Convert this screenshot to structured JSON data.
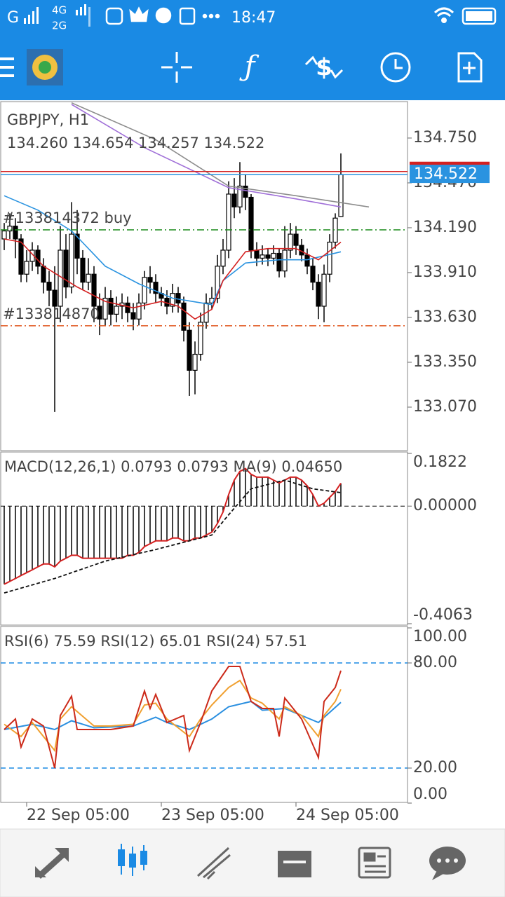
{
  "status_bar": {
    "carrier": "G",
    "network_top": "4G",
    "network_bottom": "2G",
    "time": "18:47"
  },
  "chart_data": [
    {
      "type": "candlestick",
      "title": "GBPJPY, H1",
      "subtitle": "134.260 134.654 134.257 134.522",
      "open": [
        134.12,
        134.17,
        134.2,
        134.12,
        133.9,
        133.98,
        134.05,
        133.95,
        133.85,
        133.8,
        133.7,
        134.05,
        133.82,
        134.15,
        134.0,
        133.85,
        133.9,
        133.7,
        133.62,
        133.75,
        133.65,
        133.7,
        133.72,
        133.66,
        133.62,
        133.72,
        133.88,
        133.85,
        133.78,
        133.75,
        133.7,
        133.78,
        133.72,
        133.55,
        133.3,
        133.4,
        133.6,
        133.72,
        133.75,
        133.95,
        134.05,
        134.4,
        134.32,
        134.45,
        134.38,
        134.05,
        134.0,
        134.02,
        134.0,
        134.03,
        133.92,
        134.05,
        134.15,
        134.08,
        134.02,
        133.95,
        133.85,
        133.7,
        133.9,
        134.1,
        134.26
      ],
      "high": [
        134.22,
        134.28,
        134.25,
        134.15,
        134.05,
        134.1,
        134.08,
        134.0,
        133.92,
        133.95,
        134.2,
        134.15,
        134.35,
        134.3,
        134.05,
        134.0,
        133.95,
        133.78,
        133.82,
        133.8,
        133.76,
        133.78,
        133.76,
        133.72,
        133.78,
        133.92,
        133.95,
        133.9,
        133.82,
        133.8,
        133.84,
        133.82,
        133.76,
        133.6,
        133.48,
        133.66,
        133.78,
        133.82,
        134.02,
        134.12,
        134.48,
        134.5,
        134.6,
        134.52,
        134.4,
        134.1,
        134.08,
        134.06,
        134.08,
        134.06,
        134.2,
        134.22,
        134.2,
        134.12,
        134.06,
        134.0,
        133.9,
        133.96,
        134.15,
        134.28,
        134.654
      ],
      "low": [
        134.05,
        134.12,
        134.0,
        133.85,
        133.85,
        133.92,
        133.9,
        133.78,
        133.7,
        133.04,
        133.6,
        133.75,
        133.78,
        133.9,
        133.8,
        133.8,
        133.6,
        133.52,
        133.58,
        133.58,
        133.6,
        133.62,
        133.6,
        133.55,
        133.58,
        133.68,
        133.78,
        133.72,
        133.7,
        133.65,
        133.66,
        133.66,
        133.48,
        133.14,
        133.15,
        133.36,
        133.56,
        133.68,
        133.72,
        133.9,
        134.0,
        134.25,
        134.28,
        134.3,
        134.0,
        133.95,
        133.96,
        133.95,
        133.96,
        133.88,
        133.88,
        134.0,
        134.02,
        133.98,
        133.9,
        133.8,
        133.62,
        133.6,
        133.85,
        134.06,
        134.257
      ],
      "close": [
        134.17,
        134.2,
        134.12,
        133.9,
        133.98,
        134.05,
        133.95,
        133.85,
        133.8,
        133.7,
        134.05,
        133.82,
        134.15,
        134.0,
        133.85,
        133.9,
        133.7,
        133.62,
        133.75,
        133.65,
        133.7,
        133.72,
        133.66,
        133.62,
        133.72,
        133.88,
        133.85,
        133.78,
        133.75,
        133.7,
        133.78,
        133.72,
        133.55,
        133.3,
        133.4,
        133.6,
        133.72,
        133.75,
        133.95,
        134.05,
        134.4,
        134.32,
        134.45,
        134.38,
        134.05,
        134.0,
        134.02,
        134.0,
        134.03,
        133.92,
        134.05,
        134.15,
        134.08,
        134.02,
        133.95,
        133.85,
        133.7,
        133.9,
        134.1,
        134.25,
        134.522
      ],
      "lines": [
        {
          "color": "#8c8c8c",
          "x": [
            12,
            27,
            40,
            52,
            65
          ],
          "values": [
            134.97,
            134.74,
            134.45,
            134.39,
            134.32
          ]
        },
        {
          "color": "#a070d8",
          "x": [
            12,
            25,
            40,
            52,
            60
          ],
          "values": [
            134.96,
            134.69,
            134.44,
            134.37,
            134.32
          ]
        },
        {
          "color": "#2a93e0",
          "x": [
            0,
            6,
            12,
            18,
            24,
            30,
            37,
            39,
            43,
            49,
            54,
            60
          ],
          "values": [
            134.39,
            134.3,
            134.17,
            133.95,
            133.84,
            133.75,
            133.71,
            133.86,
            133.97,
            133.99,
            133.99,
            134.04
          ]
        },
        {
          "color": "#d42020",
          "x": [
            0,
            3,
            7,
            13,
            18,
            23,
            28,
            31,
            34,
            37,
            39,
            43,
            47,
            52,
            56,
            60
          ],
          "values": [
            134.12,
            134.1,
            133.95,
            133.82,
            133.73,
            133.69,
            133.73,
            133.7,
            133.62,
            133.68,
            133.86,
            134.04,
            134.06,
            134.06,
            133.99,
            134.1
          ]
        }
      ],
      "levels": [
        {
          "kind": "ask",
          "value": 134.541,
          "color": "#d42020"
        },
        {
          "kind": "bid",
          "value": 134.522,
          "label": "134.522",
          "color": "#2a93e0"
        },
        {
          "kind": "order",
          "value": 134.177,
          "label": "#133814372 buy",
          "color": "#1a8a1a"
        },
        {
          "kind": "order",
          "value": 133.578,
          "label": "#133814870",
          "color": "#e0561c"
        }
      ],
      "ylim": [
        132.803,
        134.973
      ],
      "yticks": [
        {
          "value": 134.75,
          "label": "134.750"
        },
        {
          "value": 134.47,
          "label": "134.470"
        },
        {
          "value": 134.19,
          "label": "134.190"
        },
        {
          "value": 133.91,
          "label": "133.910"
        },
        {
          "value": 133.63,
          "label": "133.630"
        },
        {
          "value": 133.35,
          "label": "133.350"
        },
        {
          "value": 133.07,
          "label": "133.070"
        }
      ]
    },
    {
      "type": "macd",
      "title": "MACD(12,26,1) 0.0793 0.0793 MA(9) 0.04650",
      "color": "#d42020",
      "values": [
        -0.27,
        -0.26,
        -0.25,
        -0.24,
        -0.23,
        -0.22,
        -0.21,
        -0.2,
        -0.2,
        -0.21,
        -0.19,
        -0.18,
        -0.17,
        -0.17,
        -0.18,
        -0.18,
        -0.18,
        -0.18,
        -0.18,
        -0.18,
        -0.18,
        -0.18,
        -0.17,
        -0.17,
        -0.16,
        -0.14,
        -0.13,
        -0.12,
        -0.12,
        -0.12,
        -0.11,
        -0.11,
        -0.12,
        -0.12,
        -0.11,
        -0.11,
        -0.1,
        -0.09,
        -0.06,
        -0.02,
        0.04,
        0.09,
        0.12,
        0.13,
        0.11,
        0.1,
        0.1,
        0.1,
        0.09,
        0.08,
        0.09,
        0.1,
        0.1,
        0.09,
        0.07,
        0.04,
        0.0,
        0.01,
        0.03,
        0.05,
        0.0793
      ],
      "signal": {
        "color": "#111111",
        "x": [
          0,
          9,
          18,
          27,
          33,
          37,
          40,
          44,
          50,
          55,
          60
        ],
        "values": [
          -0.3,
          -0.25,
          -0.19,
          -0.15,
          -0.12,
          -0.1,
          -0.03,
          0.06,
          0.09,
          0.06,
          0.0465
        ]
      },
      "ylim": [
        -0.4063,
        0.1822
      ],
      "yticks": [
        0.1822,
        {
          "value": 0,
          "label": "0.00000"
        },
        -0.4063
      ]
    },
    {
      "type": "line",
      "title": "RSI(6) 75.59 RSI(12) 65.01 RSI(24) 57.51",
      "series": [
        {
          "color": "#2a8fe0",
          "x": [
            0,
            5,
            9,
            12,
            16,
            23,
            27,
            29,
            33,
            37,
            40,
            44,
            46,
            50,
            53,
            56,
            60
          ],
          "values": [
            42,
            45,
            42,
            47,
            43,
            44,
            49,
            46,
            42,
            48,
            55,
            58,
            53,
            54,
            50,
            46,
            57.51
          ]
        },
        {
          "color": "#f0a030",
          "x": [
            0,
            3,
            5,
            9,
            10,
            12,
            16,
            19,
            23,
            25,
            27,
            29,
            33,
            35,
            37,
            40,
            42,
            44,
            46,
            49,
            50,
            53,
            56,
            57,
            59,
            60
          ],
          "values": [
            45,
            38,
            46,
            30,
            48,
            55,
            44,
            44,
            45,
            56,
            57,
            48,
            38,
            48,
            56,
            66,
            70,
            60,
            57,
            48,
            55,
            50,
            38,
            50,
            58,
            65.01
          ]
        },
        {
          "color": "#cc2a1a",
          "x": [
            0,
            2,
            3,
            5,
            7,
            9,
            10,
            12,
            13,
            16,
            19,
            23,
            25,
            26,
            27,
            29,
            32,
            33,
            35,
            37,
            40,
            42,
            44,
            46,
            48,
            49,
            50,
            53,
            56,
            57,
            59,
            60
          ],
          "values": [
            42,
            48,
            32,
            48,
            44,
            20,
            50,
            61,
            42,
            42,
            42,
            44,
            64,
            54,
            62,
            46,
            50,
            30,
            46,
            64,
            78,
            78,
            58,
            54,
            54,
            38,
            60,
            48,
            26,
            58,
            66,
            75.59
          ]
        }
      ],
      "levels": [
        80,
        20
      ],
      "ylim": [
        0,
        100
      ],
      "yticks": [
        {
          "value": 100,
          "label": "100.00"
        },
        {
          "value": 80,
          "label": "80.00"
        },
        {
          "value": 20,
          "label": "20.00"
        },
        {
          "value": 0,
          "label": "0.00"
        }
      ],
      "xticks": [
        {
          "value": 4,
          "label": "22 Sep 05:00"
        },
        {
          "value": 28,
          "label": "23 Sep 05:00"
        },
        {
          "value": 52,
          "label": "24 Sep 05:00"
        }
      ]
    }
  ]
}
